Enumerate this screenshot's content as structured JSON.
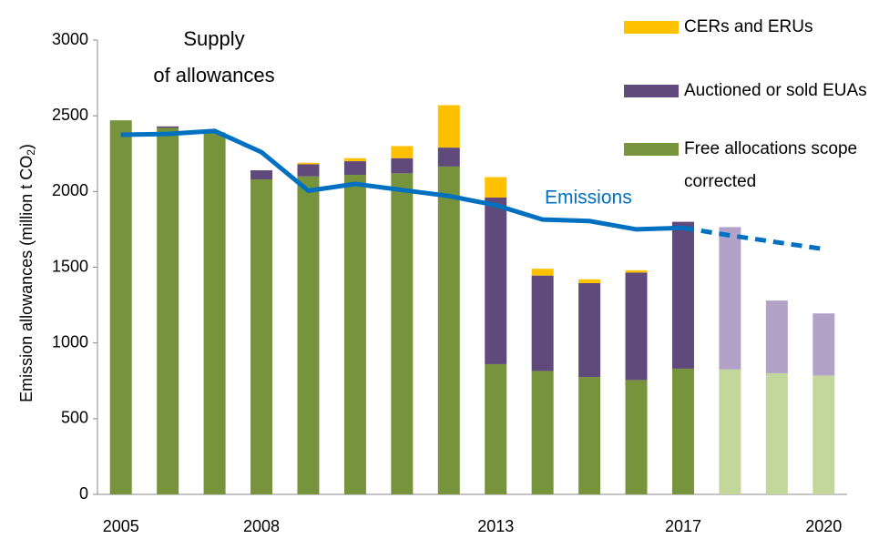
{
  "chart_data": {
    "type": "stacked_bar_line",
    "annotation": [
      "Supply",
      "of allowances"
    ],
    "ylabel": [
      "Emission allowances (million t CO",
      "2",
      ")"
    ],
    "categories": [
      "2005",
      null,
      null,
      "2008",
      null,
      null,
      null,
      null,
      "2013",
      null,
      null,
      null,
      "2017",
      null,
      null,
      "2020"
    ],
    "series": [
      {
        "name": "Free allocations scope corrected",
        "color": "#77933c",
        "colors": [
          "#77933c",
          "#77933c",
          "#77933c",
          "#77933c",
          "#77933c",
          "#77933c",
          "#77933c",
          "#77933c",
          "#77933c",
          "#77933c",
          "#77933c",
          "#77933c",
          "#77933c",
          "#c3d69b",
          "#c3d69b",
          "#c3d69b"
        ],
        "values": [
          2470,
          2420,
          2390,
          2080,
          2100,
          2110,
          2120,
          2165,
          860,
          815,
          775,
          755,
          830,
          825,
          800,
          785
        ]
      },
      {
        "name": "Auctioned or sold EUAs",
        "color": "#604a7b",
        "colors": [
          "#604a7b",
          "#604a7b",
          "#604a7b",
          "#604a7b",
          "#604a7b",
          "#604a7b",
          "#604a7b",
          "#604a7b",
          "#604a7b",
          "#604a7b",
          "#604a7b",
          "#604a7b",
          "#604a7b",
          "#b3a2c7",
          "#b3a2c7",
          "#b3a2c7"
        ],
        "values": [
          0,
          10,
          0,
          60,
          80,
          90,
          100,
          125,
          1100,
          630,
          620,
          710,
          970,
          940,
          480,
          410
        ]
      },
      {
        "name": "CERs and ERUs",
        "color": "#ffc000",
        "colors": [
          "#ffc000",
          "#ffc000",
          "#ffc000",
          "#ffc000",
          "#ffc000",
          "#ffc000",
          "#ffc000",
          "#ffc000",
          "#ffc000",
          "#ffc000",
          "#ffc000",
          "#ffc000",
          "#ffc000",
          "#ffc000",
          "#ffc000",
          "#ffc000"
        ],
        "values": [
          0,
          0,
          0,
          0,
          10,
          20,
          80,
          280,
          135,
          45,
          25,
          15,
          0,
          0,
          0,
          0
        ]
      }
    ],
    "line": {
      "name": "Emissions",
      "color": "#0070c0",
      "values": [
        2375,
        2380,
        2400,
        2260,
        2005,
        2050,
        2010,
        1970,
        1910,
        1815,
        1805,
        1750,
        1760,
        1710,
        1665,
        1620
      ],
      "line_style": [
        "solid",
        "solid",
        "solid",
        "solid",
        "solid",
        "solid",
        "solid",
        "solid",
        "solid",
        "solid",
        "solid",
        "solid",
        "solid",
        "dashed",
        "dashed",
        "dashed"
      ]
    },
    "ylim": [
      0,
      3000
    ],
    "yticks": [
      0,
      500,
      1000,
      1500,
      2000,
      2500,
      3000
    ],
    "grid": false
  }
}
